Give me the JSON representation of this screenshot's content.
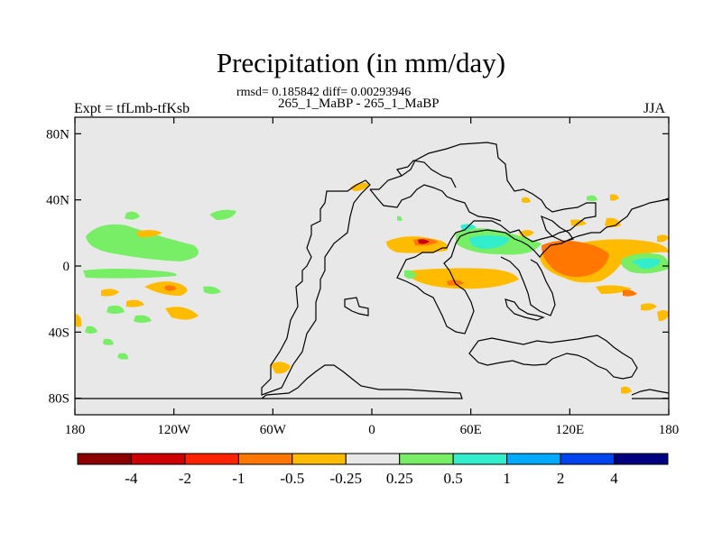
{
  "chart_data": {
    "type": "contour-map",
    "title": "Precipitation (in mm/day)",
    "stats_line": "rmsd= 0.185842 diff= 0.00293946",
    "case_line": "265_1_MaBP - 265_1_MaBP",
    "left_label": "Expt = tfLmb-tfKsb",
    "right_label": "JJA",
    "x_ticks": [
      "180",
      "120W",
      "60W",
      "0",
      "60E",
      "120E",
      "180"
    ],
    "x_tick_values": [
      -180,
      -120,
      -60,
      0,
      60,
      120,
      180
    ],
    "y_ticks": [
      "80N",
      "40N",
      "0",
      "40S",
      "80S"
    ],
    "y_tick_values": [
      80,
      40,
      0,
      -40,
      -80
    ],
    "xlim": [
      -180,
      180
    ],
    "ylim": [
      -90,
      90
    ],
    "colorbar": {
      "levels": [
        "-4",
        "-2",
        "-1",
        "-0.5",
        "-0.25",
        "0.25",
        "0.5",
        "1",
        "2",
        "4"
      ],
      "colors": [
        "#8b0000",
        "#cc0000",
        "#ff2200",
        "#ff7700",
        "#ffbb00",
        "#e8e8e8",
        "#77ee66",
        "#33eecc",
        "#00aaff",
        "#0044ee",
        "#000080"
      ]
    }
  }
}
